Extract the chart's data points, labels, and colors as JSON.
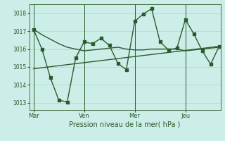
{
  "title": "",
  "xlabel": "Pression niveau de la mer( hPa )",
  "bg_color": "#cceee8",
  "grid_color": "#aad4ce",
  "line_color": "#2d5a2d",
  "xtick_labels": [
    "Mar",
    "Ven",
    "Mer",
    "Jeu"
  ],
  "xtick_positions": [
    0,
    36,
    72,
    108
  ],
  "ylim": [
    1012.6,
    1018.5
  ],
  "yticks": [
    1013,
    1014,
    1015,
    1016,
    1017,
    1018
  ],
  "xlim": [
    -3,
    133
  ],
  "series1": {
    "x": [
      0,
      6,
      12,
      18,
      24,
      30,
      36,
      42,
      48,
      54,
      60,
      66,
      72,
      78,
      84,
      90,
      96,
      102,
      108,
      114,
      120,
      126,
      132
    ],
    "y": [
      1017.1,
      1016.8,
      1016.55,
      1016.3,
      1016.1,
      1016.0,
      1015.9,
      1015.95,
      1016.0,
      1016.05,
      1016.1,
      1016.0,
      1015.95,
      1015.95,
      1016.0,
      1016.0,
      1016.0,
      1016.0,
      1015.9,
      1015.95,
      1016.0,
      1016.05,
      1016.1
    ],
    "lw": 1.0,
    "marker": null
  },
  "series2": {
    "x": [
      0,
      6,
      12,
      18,
      24,
      30,
      36,
      42,
      48,
      54,
      60,
      66,
      72,
      78,
      84,
      90,
      96,
      102,
      108,
      114,
      120,
      126,
      132
    ],
    "y": [
      1017.1,
      1016.0,
      1014.4,
      1013.15,
      1013.05,
      1015.5,
      1016.4,
      1016.3,
      1016.6,
      1016.2,
      1015.2,
      1014.85,
      1017.55,
      1017.95,
      1018.25,
      1016.4,
      1015.95,
      1016.05,
      1017.65,
      1016.85,
      1015.9,
      1015.15,
      1016.15
    ],
    "lw": 1.0,
    "marker": "s",
    "markersize": 2.2
  },
  "series3": {
    "x": [
      0,
      132
    ],
    "y": [
      1014.9,
      1016.15
    ],
    "lw": 1.0,
    "marker": null
  },
  "vlines": [
    0,
    36,
    72,
    108
  ],
  "vline_color": "#2d5a2d",
  "font_color": "#2d5a2d",
  "xlabel_fontsize": 7,
  "tick_fontsize": 5.5
}
